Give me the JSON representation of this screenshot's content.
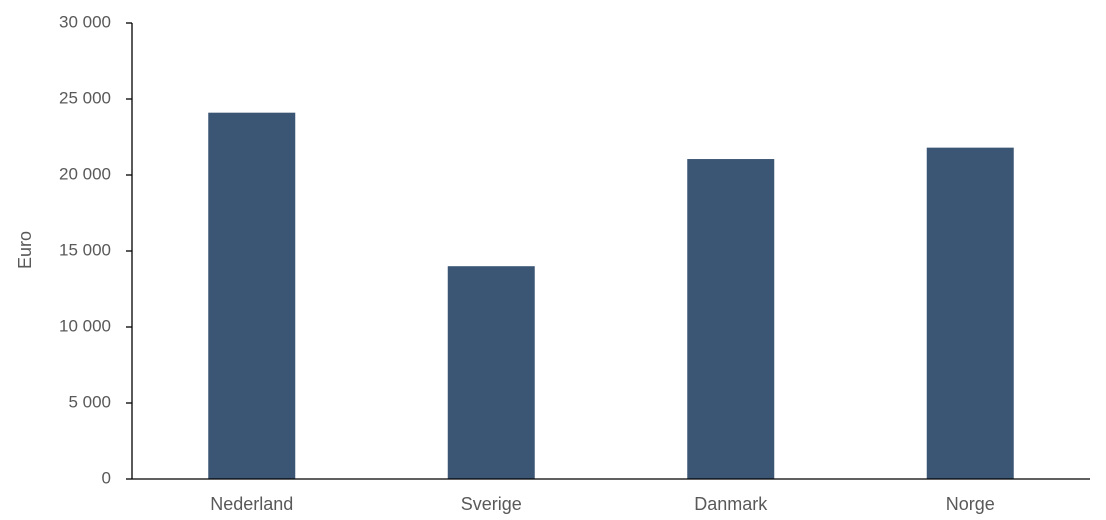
{
  "chart_data": {
    "type": "bar",
    "categories": [
      "Nederland",
      "Sverige",
      "Danmark",
      "Norge"
    ],
    "values": [
      24100,
      14000,
      21050,
      21800
    ],
    "title": "",
    "xlabel": "",
    "ylabel": "Euro",
    "ylim": [
      0,
      30000
    ],
    "yticks": [
      0,
      5000,
      10000,
      15000,
      20000,
      25000,
      30000
    ],
    "ytick_labels": [
      "0",
      "5 000",
      "10 000",
      "15 000",
      "20 000",
      "25 000",
      "30 000"
    ],
    "grid": false,
    "legend": "none",
    "bar_color": "#3b5675"
  }
}
